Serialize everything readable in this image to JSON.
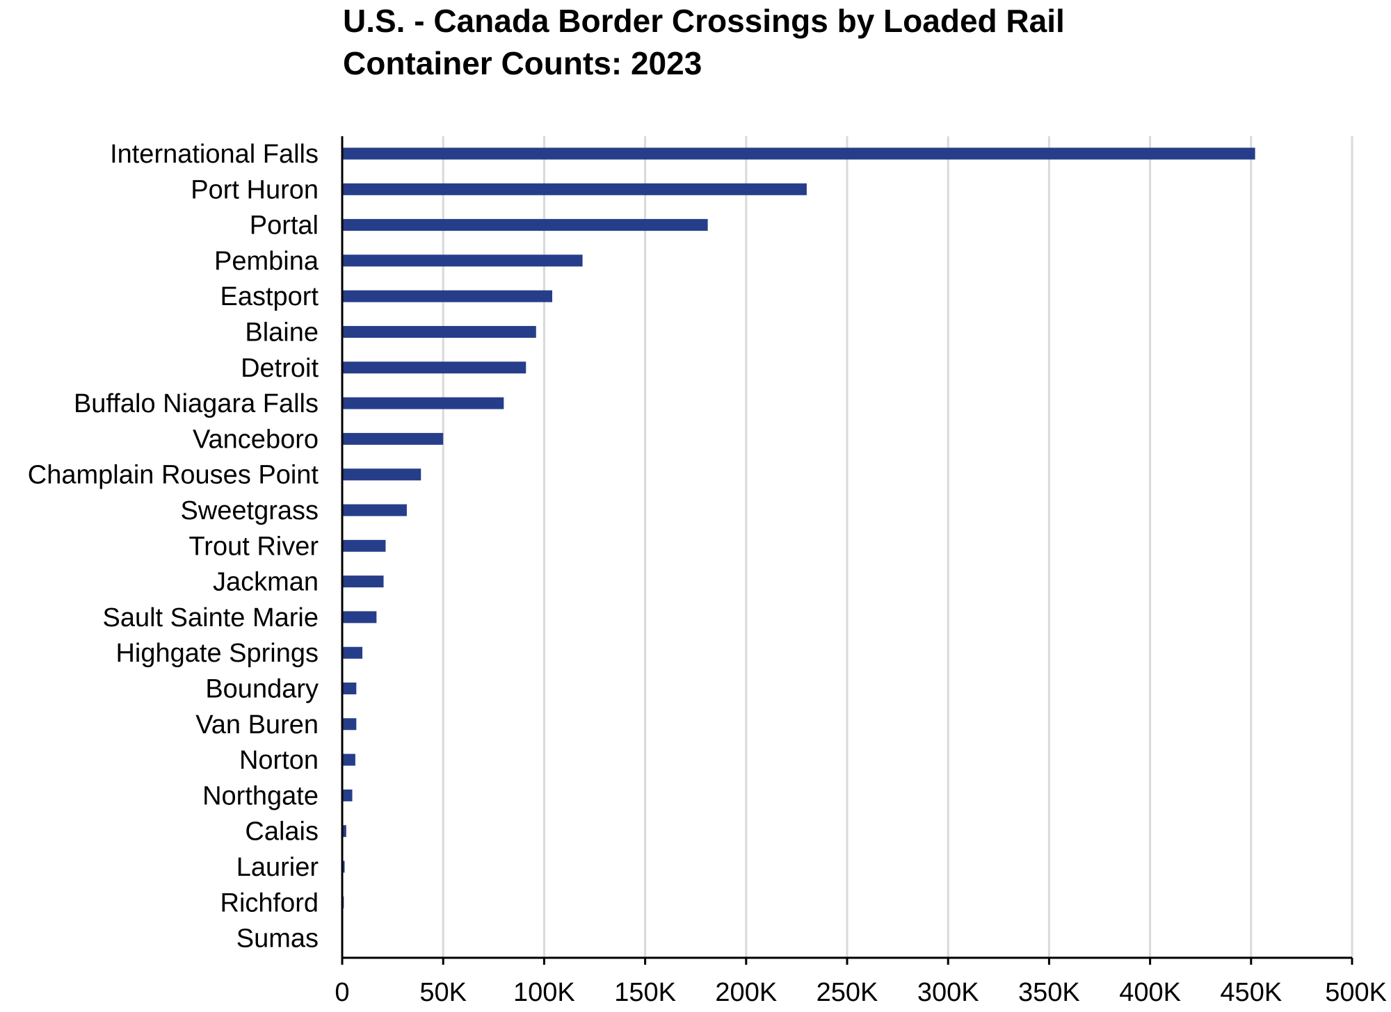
{
  "chart_data": {
    "type": "bar",
    "orientation": "horizontal",
    "title": "U.S. - Canada Border Crossings by Loaded Rail Container Counts: 2023",
    "title_lines": [
      "U.S. - Canada Border Crossings by Loaded Rail",
      "Container Counts: 2023"
    ],
    "xlabel": "",
    "ylabel": "",
    "categories": [
      "International Falls",
      "Port Huron",
      "Portal",
      "Pembina",
      "Eastport",
      "Blaine",
      "Detroit",
      "Buffalo Niagara Falls",
      "Vanceboro",
      "Champlain Rouses Point",
      "Sweetgrass",
      "Trout River",
      "Jackman",
      "Sault Sainte Marie",
      "Highgate Springs",
      "Boundary",
      "Van Buren",
      "Norton",
      "Northgate",
      "Calais",
      "Laurier",
      "Richford",
      "Sumas"
    ],
    "values": [
      452000,
      230000,
      181000,
      119000,
      104000,
      96000,
      91000,
      80000,
      50000,
      39000,
      32000,
      21500,
      20500,
      17000,
      10000,
      7000,
      7000,
      6500,
      5000,
      2000,
      1200,
      800,
      0
    ],
    "xlim": [
      0,
      500000
    ],
    "xticks": [
      0,
      50000,
      100000,
      150000,
      200000,
      250000,
      300000,
      350000,
      400000,
      450000,
      500000
    ],
    "xtick_labels": [
      "0",
      "50K",
      "100K",
      "150K",
      "200K",
      "250K",
      "300K",
      "350K",
      "400K",
      "450K",
      "500K"
    ],
    "grid": true,
    "legend": "none",
    "bar_color": "#263e8a",
    "grid_color": "#d9d9d9",
    "axis_color": "#000000"
  }
}
